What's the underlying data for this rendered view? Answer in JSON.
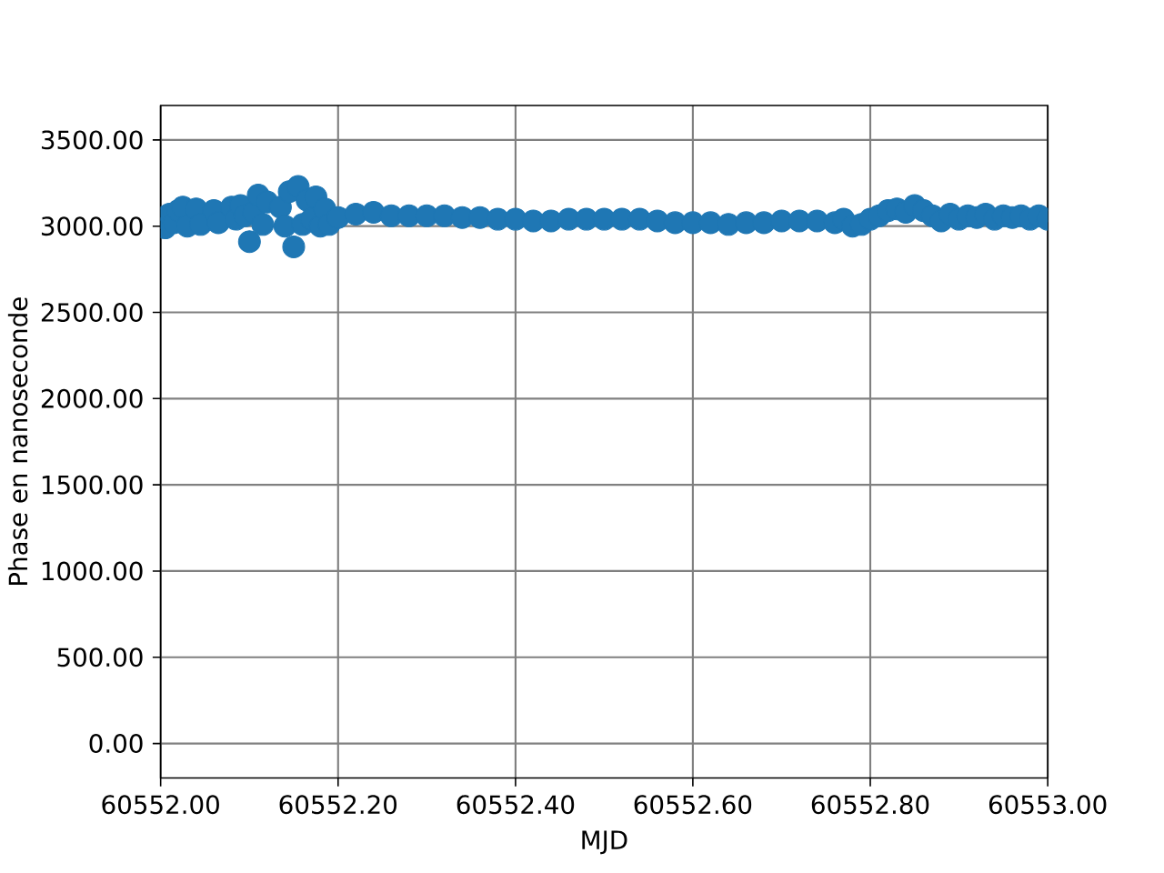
{
  "chart_data": {
    "type": "scatter",
    "xlabel": "MJD",
    "ylabel": "Phase en nanoseconde",
    "xlim": [
      60552.0,
      60553.0
    ],
    "ylim": [
      -200,
      3700
    ],
    "xticks": [
      {
        "value": 60552.0,
        "label": "60552.00"
      },
      {
        "value": 60552.2,
        "label": "60552.20"
      },
      {
        "value": 60552.4,
        "label": "60552.40"
      },
      {
        "value": 60552.6,
        "label": "60552.60"
      },
      {
        "value": 60552.8,
        "label": "60552.80"
      },
      {
        "value": 60553.0,
        "label": "60553.00"
      }
    ],
    "yticks": [
      {
        "value": 0,
        "label": "0.00"
      },
      {
        "value": 500,
        "label": "500.00"
      },
      {
        "value": 1000,
        "label": "1000.00"
      },
      {
        "value": 1500,
        "label": "1500.00"
      },
      {
        "value": 2000,
        "label": "2000.00"
      },
      {
        "value": 2500,
        "label": "2500.00"
      },
      {
        "value": 3000,
        "label": "3000.00"
      },
      {
        "value": 3500,
        "label": "3500.00"
      }
    ],
    "grid": true,
    "marker": "circle",
    "color": "#1f77b4",
    "x": [
      60552.0,
      60552.005,
      60552.01,
      60552.015,
      60552.02,
      60552.025,
      60552.03,
      60552.04,
      60552.045,
      60552.06,
      60552.065,
      60552.08,
      60552.085,
      60552.09,
      60552.095,
      60552.1,
      60552.105,
      60552.11,
      60552.115,
      60552.12,
      60552.135,
      60552.14,
      60552.145,
      60552.15,
      60552.155,
      60552.16,
      60552.165,
      60552.17,
      60552.175,
      60552.18,
      60552.185,
      60552.19,
      60552.2,
      60552.22,
      60552.24,
      60552.26,
      60552.28,
      60552.3,
      60552.32,
      60552.34,
      60552.36,
      60552.38,
      60552.4,
      60552.42,
      60552.44,
      60552.46,
      60552.48,
      60552.5,
      60552.52,
      60552.54,
      60552.56,
      60552.58,
      60552.6,
      60552.62,
      60552.64,
      60552.66,
      60552.68,
      60552.7,
      60552.72,
      60552.74,
      60552.76,
      60552.77,
      60552.78,
      60552.79,
      60552.8,
      60552.81,
      60552.82,
      60552.83,
      60552.84,
      60552.85,
      60552.86,
      60552.87,
      60552.88,
      60552.89,
      60552.9,
      60552.91,
      60552.92,
      60552.93,
      60552.94,
      60552.95,
      60552.96,
      60552.97,
      60552.98,
      60552.99,
      60553.0
    ],
    "values": [
      3050,
      2990,
      3070,
      3020,
      3090,
      3110,
      3000,
      3100,
      3010,
      3090,
      3020,
      3110,
      3040,
      3120,
      3060,
      2910,
      3080,
      3180,
      3010,
      3140,
      3110,
      3000,
      3200,
      2880,
      3230,
      3010,
      3150,
      3040,
      3170,
      3000,
      3100,
      3010,
      3050,
      3070,
      3080,
      3060,
      3060,
      3060,
      3060,
      3050,
      3050,
      3040,
      3040,
      3030,
      3030,
      3040,
      3040,
      3040,
      3040,
      3040,
      3030,
      3020,
      3020,
      3020,
      3010,
      3020,
      3020,
      3030,
      3030,
      3030,
      3020,
      3040,
      3000,
      3010,
      3040,
      3060,
      3090,
      3100,
      3080,
      3120,
      3090,
      3060,
      3030,
      3070,
      3040,
      3060,
      3050,
      3070,
      3040,
      3060,
      3050,
      3060,
      3040,
      3060,
      3040
    ]
  }
}
